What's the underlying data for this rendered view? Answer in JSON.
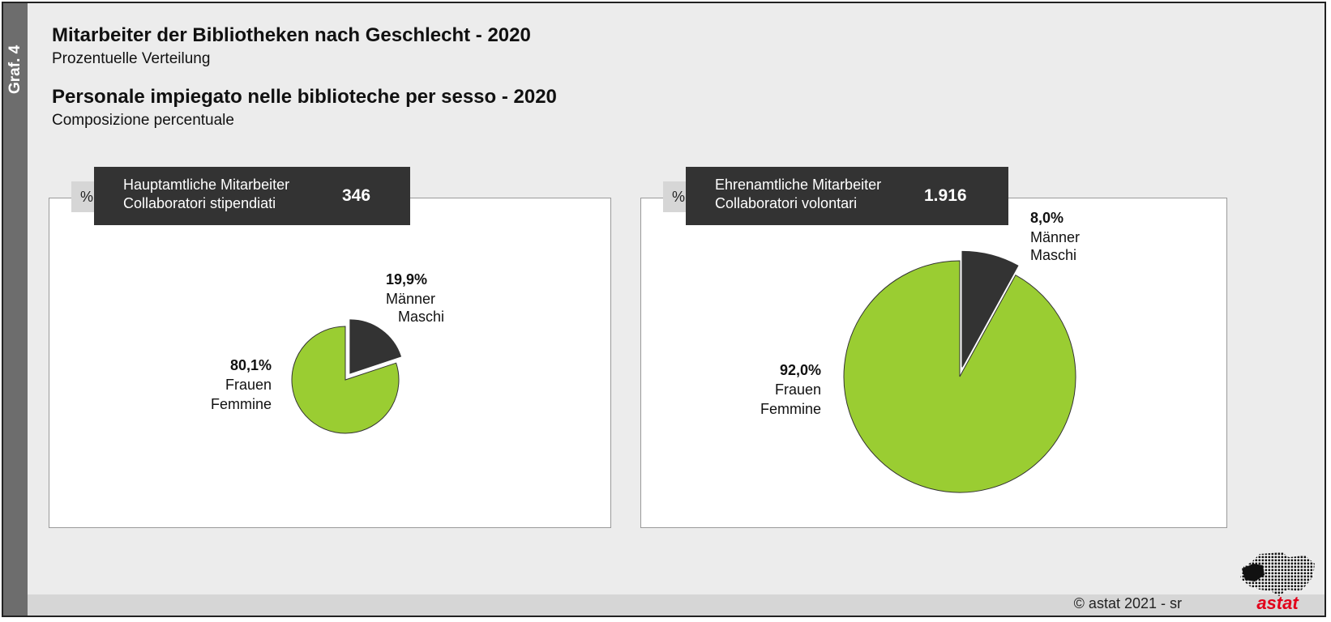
{
  "graph_label": "Graf. 4",
  "title_de": "Mitarbeiter der Bibliotheken nach Geschlecht - 2020",
  "subtitle_de": "Prozentuelle Verteilung",
  "title_it": "Personale impiegato nelle biblioteche per sesso - 2020",
  "subtitle_it": "Composizione percentuale",
  "unit_badge": "%",
  "footer": {
    "copyright": "© astat 2021 - sr",
    "logo_text": "astat"
  },
  "colors": {
    "women": "#9acd32",
    "men": "#333333",
    "sidebar": "#6d6d6d",
    "logo_red": "#e2001a"
  },
  "chart_data": [
    {
      "type": "pie",
      "title_de": "Hauptamtliche Mitarbeiter",
      "title_it": "Collaboratori stipendiati",
      "total": "346",
      "slices": [
        {
          "value_label": "19,9%",
          "label_de": "Männer",
          "label_it": "Maschi",
          "value": 19.9,
          "color": "#333333",
          "exploded": true
        },
        {
          "value_label": "80,1%",
          "label_de": "Frauen",
          "label_it": "Femmine",
          "value": 80.1,
          "color": "#9acd32",
          "exploded": false
        }
      ]
    },
    {
      "type": "pie",
      "title_de": "Ehrenamtliche Mitarbeiter",
      "title_it": "Collaboratori volontari",
      "total": "1.916",
      "slices": [
        {
          "value_label": "8,0%",
          "label_de": "Männer",
          "label_it": "Maschi",
          "value": 8.0,
          "color": "#333333",
          "exploded": true
        },
        {
          "value_label": "92,0%",
          "label_de": "Frauen",
          "label_it": "Femmine",
          "value": 92.0,
          "color": "#9acd32",
          "exploded": false
        }
      ]
    }
  ]
}
